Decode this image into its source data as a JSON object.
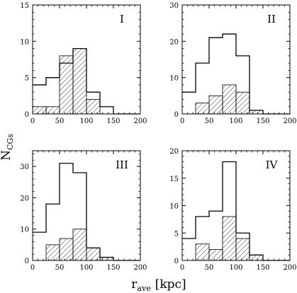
{
  "figure": {
    "ylabel_main": "N",
    "ylabel_sub": "CGs",
    "xlabel_main": "r",
    "xlabel_sub": "ave",
    "xlabel_unit": "[kpc]"
  },
  "chart_data": [
    {
      "type": "bar",
      "panel_label": "I",
      "xlim": [
        0,
        200
      ],
      "ylim": [
        0,
        15
      ],
      "x_ticks": [
        0,
        50,
        100,
        150,
        200
      ],
      "x_tick_labels": [
        "0",
        "50",
        "100",
        "150",
        "200"
      ],
      "y_ticks": [
        0,
        5,
        10,
        15
      ],
      "y_tick_labels": [
        "0",
        "5",
        "10",
        "15"
      ],
      "bin_edges": [
        0,
        25,
        50,
        75,
        100,
        125,
        150,
        175,
        200
      ],
      "series": [
        {
          "style": "outline",
          "values": [
            4,
            5,
            7,
            9,
            3,
            1,
            0,
            0
          ]
        },
        {
          "style": "hatched",
          "values": [
            1,
            1,
            8,
            9,
            2,
            0,
            0,
            0
          ]
        }
      ]
    },
    {
      "type": "bar",
      "panel_label": "II",
      "xlim": [
        0,
        200
      ],
      "ylim": [
        0,
        30
      ],
      "x_ticks": [
        0,
        50,
        100,
        150,
        200
      ],
      "x_tick_labels": [
        "0",
        "50",
        "100",
        "150",
        "200"
      ],
      "y_ticks": [
        0,
        10,
        20,
        30
      ],
      "y_tick_labels": [
        "0",
        "10",
        "20",
        "30"
      ],
      "bin_edges": [
        0,
        25,
        50,
        75,
        100,
        125,
        150,
        175,
        200
      ],
      "series": [
        {
          "style": "outline",
          "values": [
            6,
            14,
            21,
            22,
            16,
            1,
            0,
            0
          ]
        },
        {
          "style": "hatched",
          "values": [
            0,
            3,
            5,
            8,
            6,
            1,
            0,
            0
          ]
        }
      ]
    },
    {
      "type": "bar",
      "panel_label": "III",
      "xlim": [
        0,
        200
      ],
      "ylim": [
        0,
        35
      ],
      "x_ticks": [
        0,
        50,
        100,
        150,
        200
      ],
      "x_tick_labels": [
        "0",
        "50",
        "100",
        "150",
        "200"
      ],
      "y_ticks": [
        0,
        10,
        20,
        30
      ],
      "y_tick_labels": [
        "0",
        "10",
        "20",
        "30"
      ],
      "bin_edges": [
        0,
        25,
        50,
        75,
        100,
        125,
        150,
        175,
        200
      ],
      "series": [
        {
          "style": "outline",
          "values": [
            9,
            18,
            31,
            28,
            4,
            1,
            0,
            0
          ]
        },
        {
          "style": "hatched",
          "values": [
            0,
            5,
            7,
            10,
            4,
            1,
            0,
            0
          ]
        }
      ]
    },
    {
      "type": "bar",
      "panel_label": "IV",
      "xlim": [
        0,
        200
      ],
      "ylim": [
        0,
        20
      ],
      "x_ticks": [
        0,
        50,
        100,
        150,
        200
      ],
      "x_tick_labels": [
        "0",
        "50",
        "100",
        "150",
        "200"
      ],
      "y_ticks": [
        0,
        5,
        10,
        15,
        20
      ],
      "y_tick_labels": [
        "0",
        "5",
        "10",
        "15",
        "20"
      ],
      "bin_edges": [
        0,
        25,
        50,
        75,
        100,
        125,
        150,
        175,
        200
      ],
      "series": [
        {
          "style": "outline",
          "values": [
            4,
            8,
            9,
            18,
            5,
            1,
            0,
            0
          ]
        },
        {
          "style": "hatched",
          "values": [
            0,
            3,
            2,
            8,
            4,
            1,
            0,
            0
          ]
        }
      ]
    }
  ]
}
